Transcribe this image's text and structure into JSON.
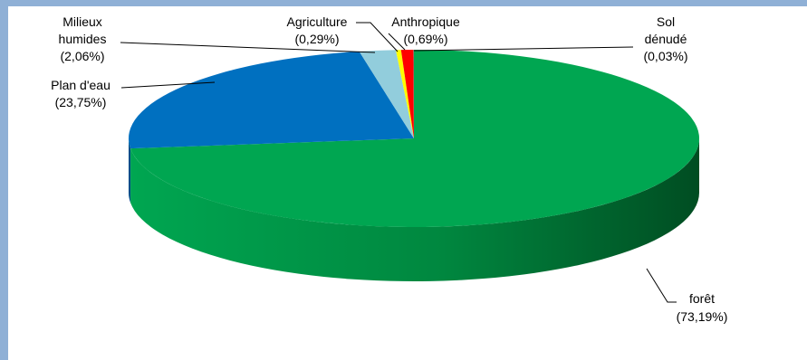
{
  "chart_data": {
    "type": "pie",
    "style": "3d",
    "title": "",
    "slices": [
      {
        "name": "forêt",
        "value": 73.19,
        "label_pct": "(73,19%)",
        "color": "#00a651",
        "dark": "#006b32"
      },
      {
        "name": "Plan d'eau",
        "value": 23.75,
        "label_pct": "(23,75%)",
        "color": "#0070c0",
        "dark": "#004e86"
      },
      {
        "name": "Milieux humides",
        "label_lines": [
          "Milieux",
          "humides"
        ],
        "value": 2.06,
        "label_pct": "(2,06%)",
        "color": "#92cddc",
        "dark": "#6a9aa6"
      },
      {
        "name": "Agriculture",
        "value": 0.29,
        "label_pct": "(0,29%)",
        "color": "#ffff00",
        "dark": "#b3b300"
      },
      {
        "name": "Anthropique",
        "value": 0.69,
        "label_pct": "(0,69%)",
        "color": "#ff0000",
        "dark": "#a00000"
      },
      {
        "name": "Sol dénudé",
        "label_lines": [
          "Sol",
          "dénudé"
        ],
        "value": 0.03,
        "label_pct": "(0,03%)",
        "color": "#7f7f7f",
        "dark": "#555555"
      }
    ],
    "legend": "none"
  }
}
